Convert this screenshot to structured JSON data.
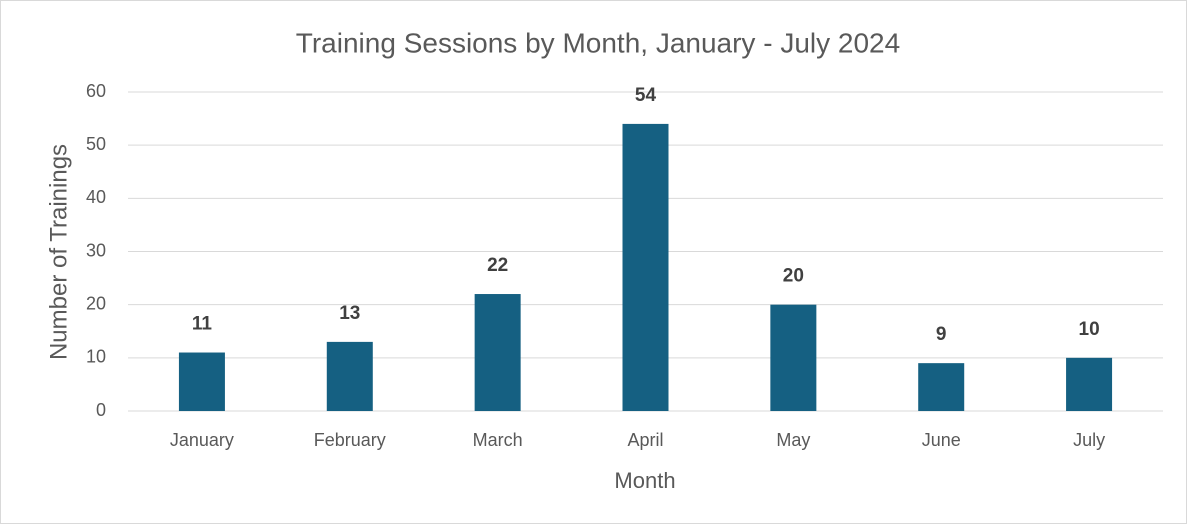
{
  "chart_data": {
    "type": "bar",
    "title": "Training Sessions by Month, January - July 2024",
    "x_label": "Month",
    "y_label": "Number of Trainings",
    "categories": [
      "January",
      "February",
      "March",
      "April",
      "May",
      "June",
      "July"
    ],
    "values": [
      11,
      13,
      22,
      54,
      20,
      9,
      10
    ],
    "color": "#156082",
    "ylim": [
      0,
      60
    ],
    "yticks": [
      0,
      10,
      20,
      30,
      40,
      50,
      60
    ],
    "grid": true
  }
}
